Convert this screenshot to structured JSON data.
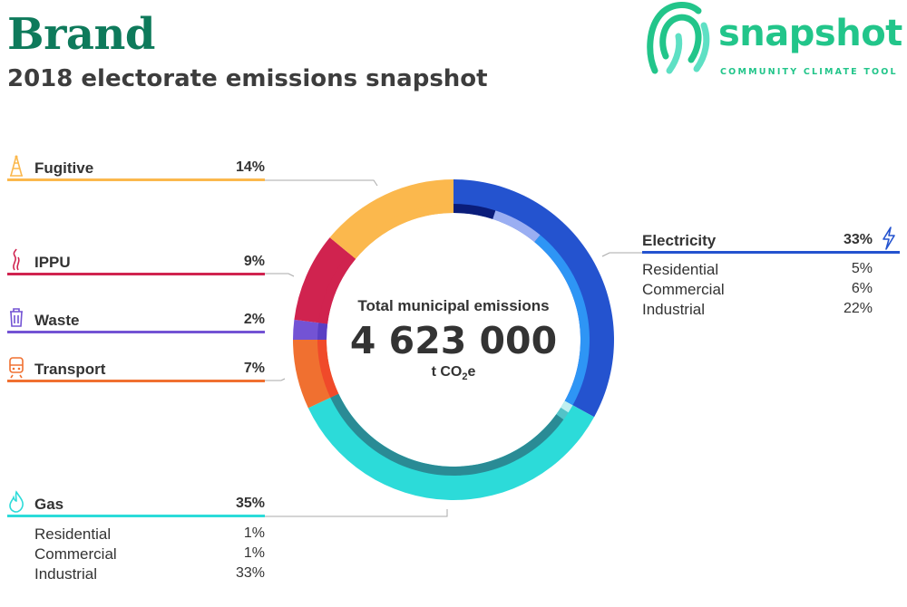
{
  "header": {
    "brand": "Brand",
    "subtitle": "2018 electorate emissions snapshot"
  },
  "logo": {
    "name": "snapshot",
    "tagline": "COMMUNITY CLIMATE TOOL",
    "color": "#22c58a"
  },
  "center": {
    "title": "Total municipal emissions",
    "value": "4 623 000",
    "unit_prefix": "t CO",
    "unit_sub": "2",
    "unit_suffix": "e"
  },
  "categories": {
    "fugitive": {
      "label": "Fugitive",
      "pct": "14%",
      "color": "#fbb84d",
      "icon": "oil-rig-icon"
    },
    "ippu": {
      "label": "IPPU",
      "pct": "9%",
      "color": "#d0234f",
      "icon": "smoke-icon"
    },
    "waste": {
      "label": "Waste",
      "pct": "2%",
      "color": "#7353d4",
      "icon": "trash-icon"
    },
    "transport": {
      "label": "Transport",
      "pct": "7%",
      "color": "#f07030",
      "icon": "train-icon"
    },
    "gas": {
      "label": "Gas",
      "pct": "35%",
      "color": "#2cdbd9",
      "icon": "flame-icon",
      "subs": [
        {
          "label": "Residential",
          "pct": "1%"
        },
        {
          "label": "Commercial",
          "pct": "1%"
        },
        {
          "label": "Industrial",
          "pct": "33%"
        }
      ]
    },
    "electricity": {
      "label": "Electricity",
      "pct": "33%",
      "color": "#2453cf",
      "icon": "lightning-icon",
      "subs": [
        {
          "label": "Residential",
          "pct": "5%"
        },
        {
          "label": "Commercial",
          "pct": "6%"
        },
        {
          "label": "Industrial",
          "pct": "22%"
        }
      ]
    }
  },
  "chart_data": {
    "type": "pie",
    "title": "Total municipal emissions",
    "total": 4623000,
    "unit": "t CO2e",
    "series": [
      {
        "name": "Electricity",
        "value": 33,
        "color": "#2453cf",
        "sub": [
          {
            "name": "Residential",
            "value": 5,
            "color": "#0a1d7a"
          },
          {
            "name": "Commercial",
            "value": 6,
            "color": "#9aaef2"
          },
          {
            "name": "Industrial",
            "value": 22,
            "color": "#2e95f5"
          }
        ]
      },
      {
        "name": "Gas",
        "value": 35,
        "color": "#2cdbd9",
        "sub": [
          {
            "name": "Residential",
            "value": 1,
            "color": "#bfeff0"
          },
          {
            "name": "Commercial",
            "value": 1,
            "color": "#52c3c8"
          },
          {
            "name": "Industrial",
            "value": 33,
            "color": "#2a8b95"
          }
        ]
      },
      {
        "name": "Transport",
        "value": 7,
        "color": "#f07030",
        "sub": [
          {
            "name": "Transport",
            "value": 7,
            "color": "#f04a2a"
          }
        ]
      },
      {
        "name": "Waste",
        "value": 2,
        "color": "#7353d4",
        "sub": [
          {
            "name": "Waste",
            "value": 2,
            "color": "#5a3fc4"
          }
        ]
      },
      {
        "name": "IPPU",
        "value": 9,
        "color": "#d0234f",
        "sub": [
          {
            "name": "IPPU",
            "value": 9,
            "color": "#d0234f"
          }
        ]
      },
      {
        "name": "Fugitive",
        "value": 14,
        "color": "#fbb84d",
        "sub": [
          {
            "name": "Fugitive",
            "value": 14,
            "color": "#fbb84d"
          }
        ]
      }
    ]
  }
}
